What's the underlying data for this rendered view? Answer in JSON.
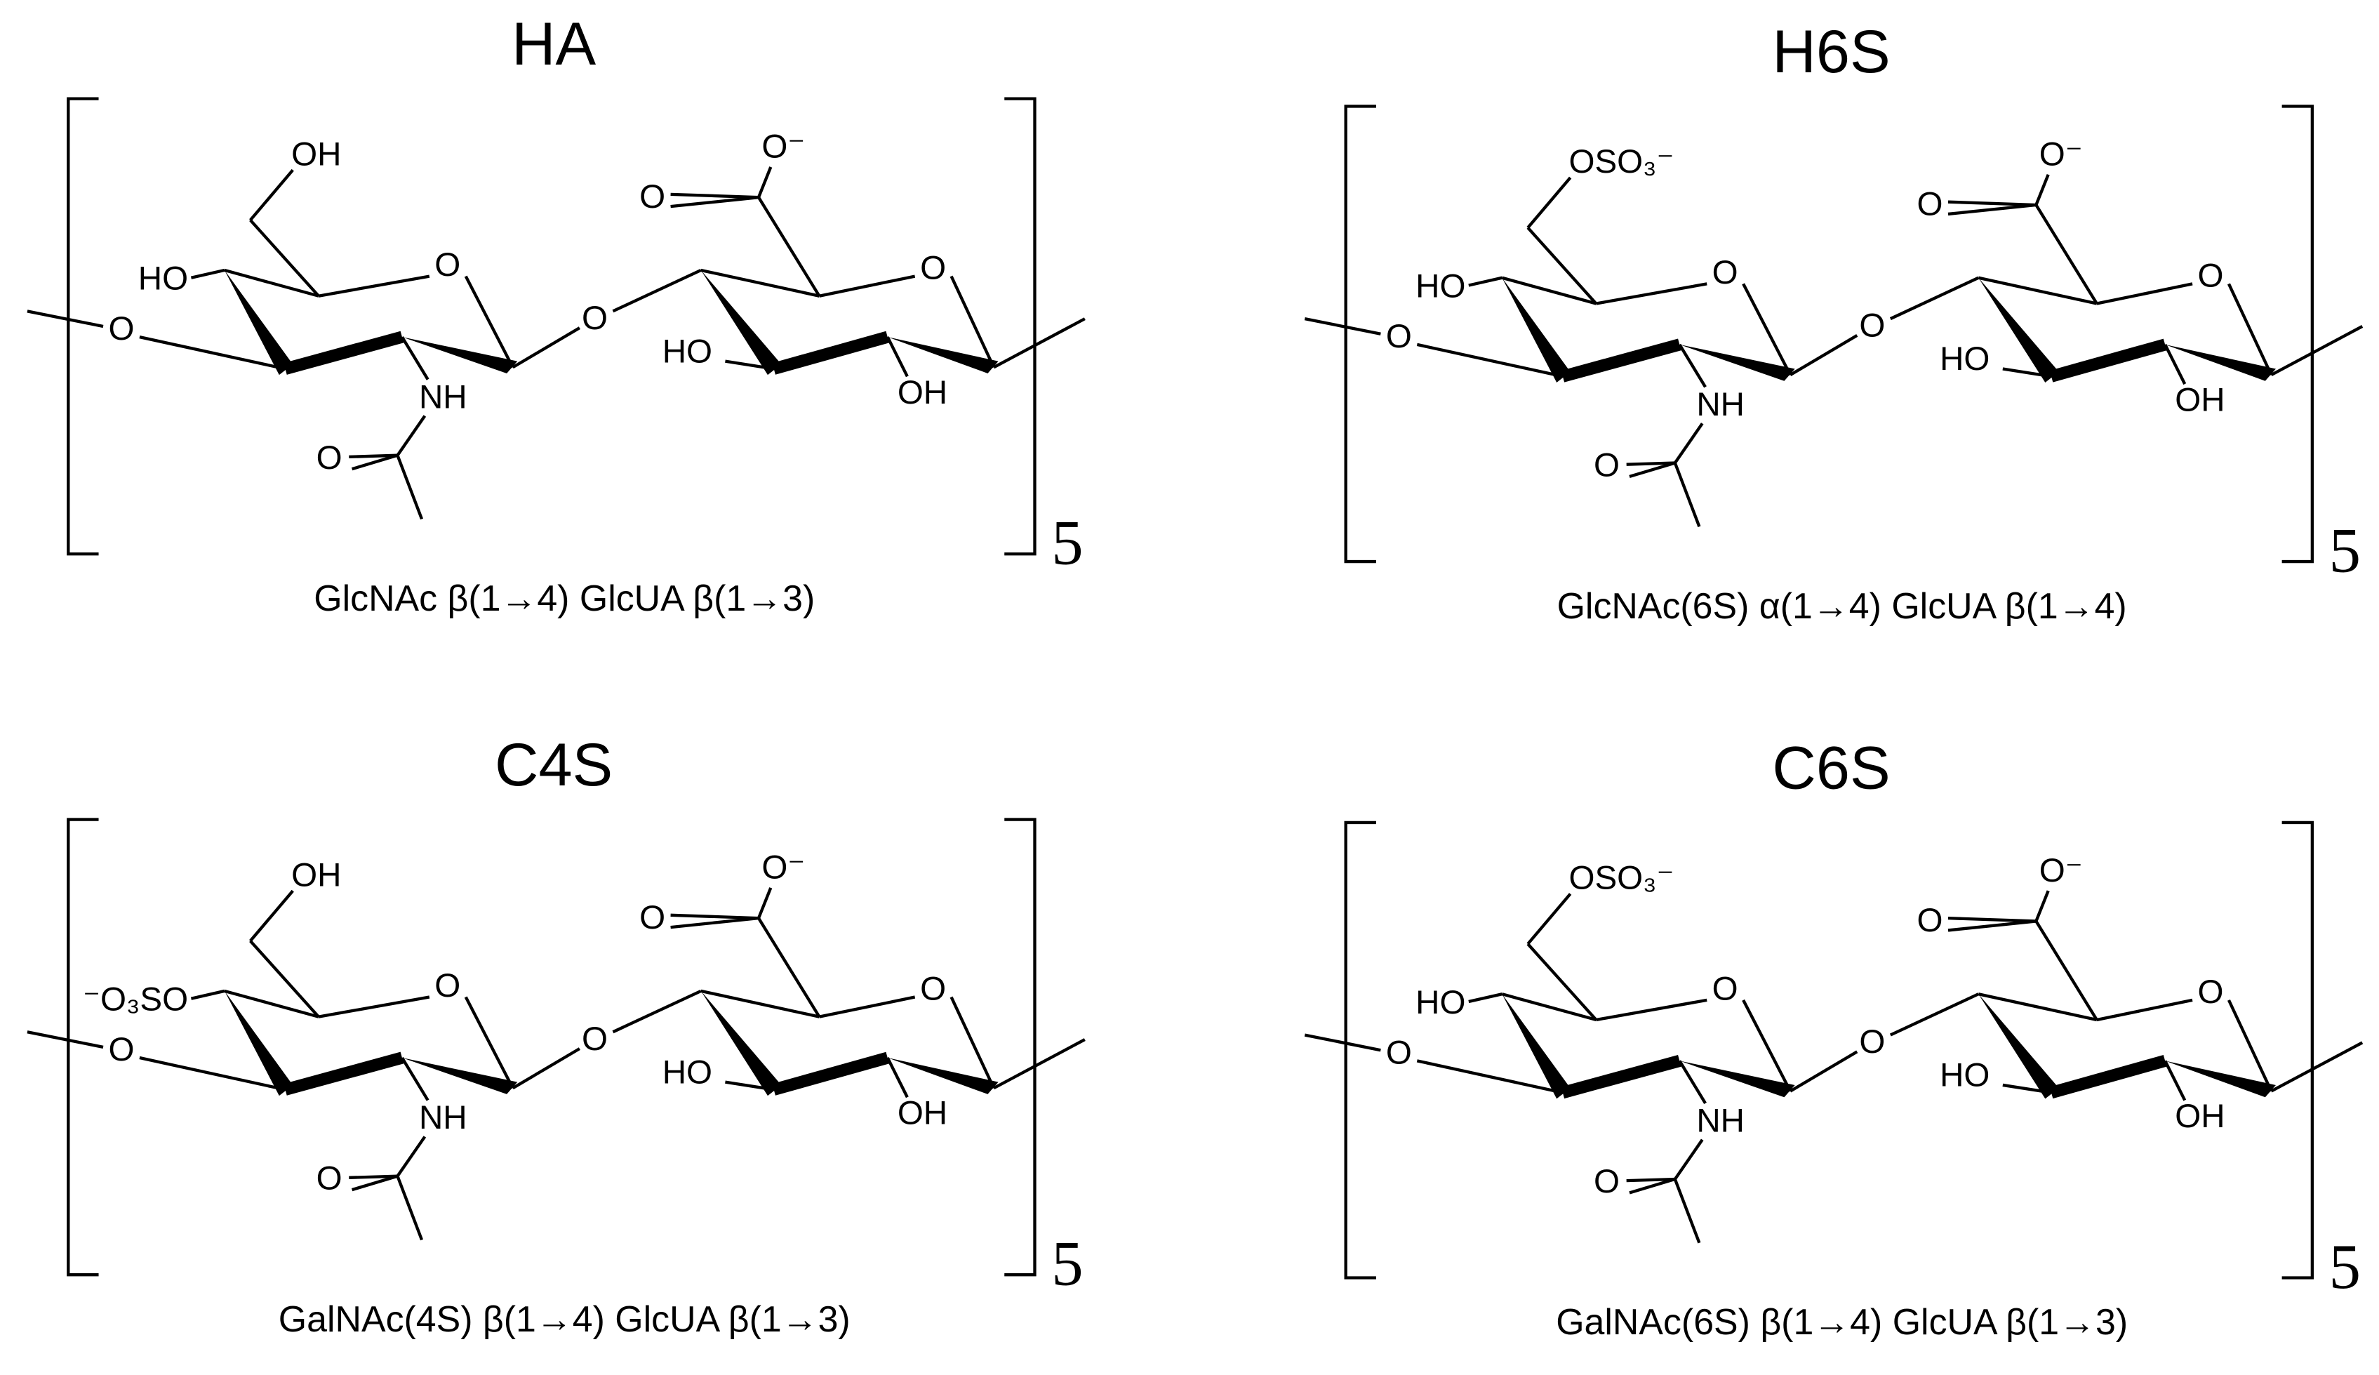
{
  "panels": [
    {
      "title": "HA",
      "caption": "GlcNAc β(1→4) GlcUA β(1→3)",
      "repeat": "5",
      "atoms": [
        "O",
        "HO",
        "OH",
        "O",
        "NH",
        "O",
        "O",
        "HO",
        "OH",
        "O",
        "O",
        "O⁻"
      ]
    },
    {
      "title": "H6S",
      "caption": "GlcNAc(6S) α(1→4) GlcUA β(1→4)",
      "repeat": "5",
      "atoms": [
        "O",
        "HO",
        "OSO₃⁻",
        "O",
        "NH",
        "O",
        "O",
        "HO",
        "OH",
        "O",
        "O",
        "O⁻"
      ]
    },
    {
      "title": "C4S",
      "caption": "GalNAc(4S) β(1→4) GlcUA β(1→3)",
      "repeat": "5",
      "atoms": [
        "O",
        "⁻O₃SO",
        "OH",
        "O",
        "NH",
        "O",
        "O",
        "HO",
        "OH",
        "O",
        "O",
        "O⁻"
      ]
    },
    {
      "title": "C6S",
      "caption": "GalNAc(6S) β(1→4) GlcUA β(1→3)",
      "repeat": "5",
      "atoms": [
        "O",
        "HO",
        "OSO₃⁻",
        "O",
        "NH",
        "O",
        "O",
        "HO",
        "OH",
        "O",
        "O",
        "O⁻"
      ]
    }
  ]
}
